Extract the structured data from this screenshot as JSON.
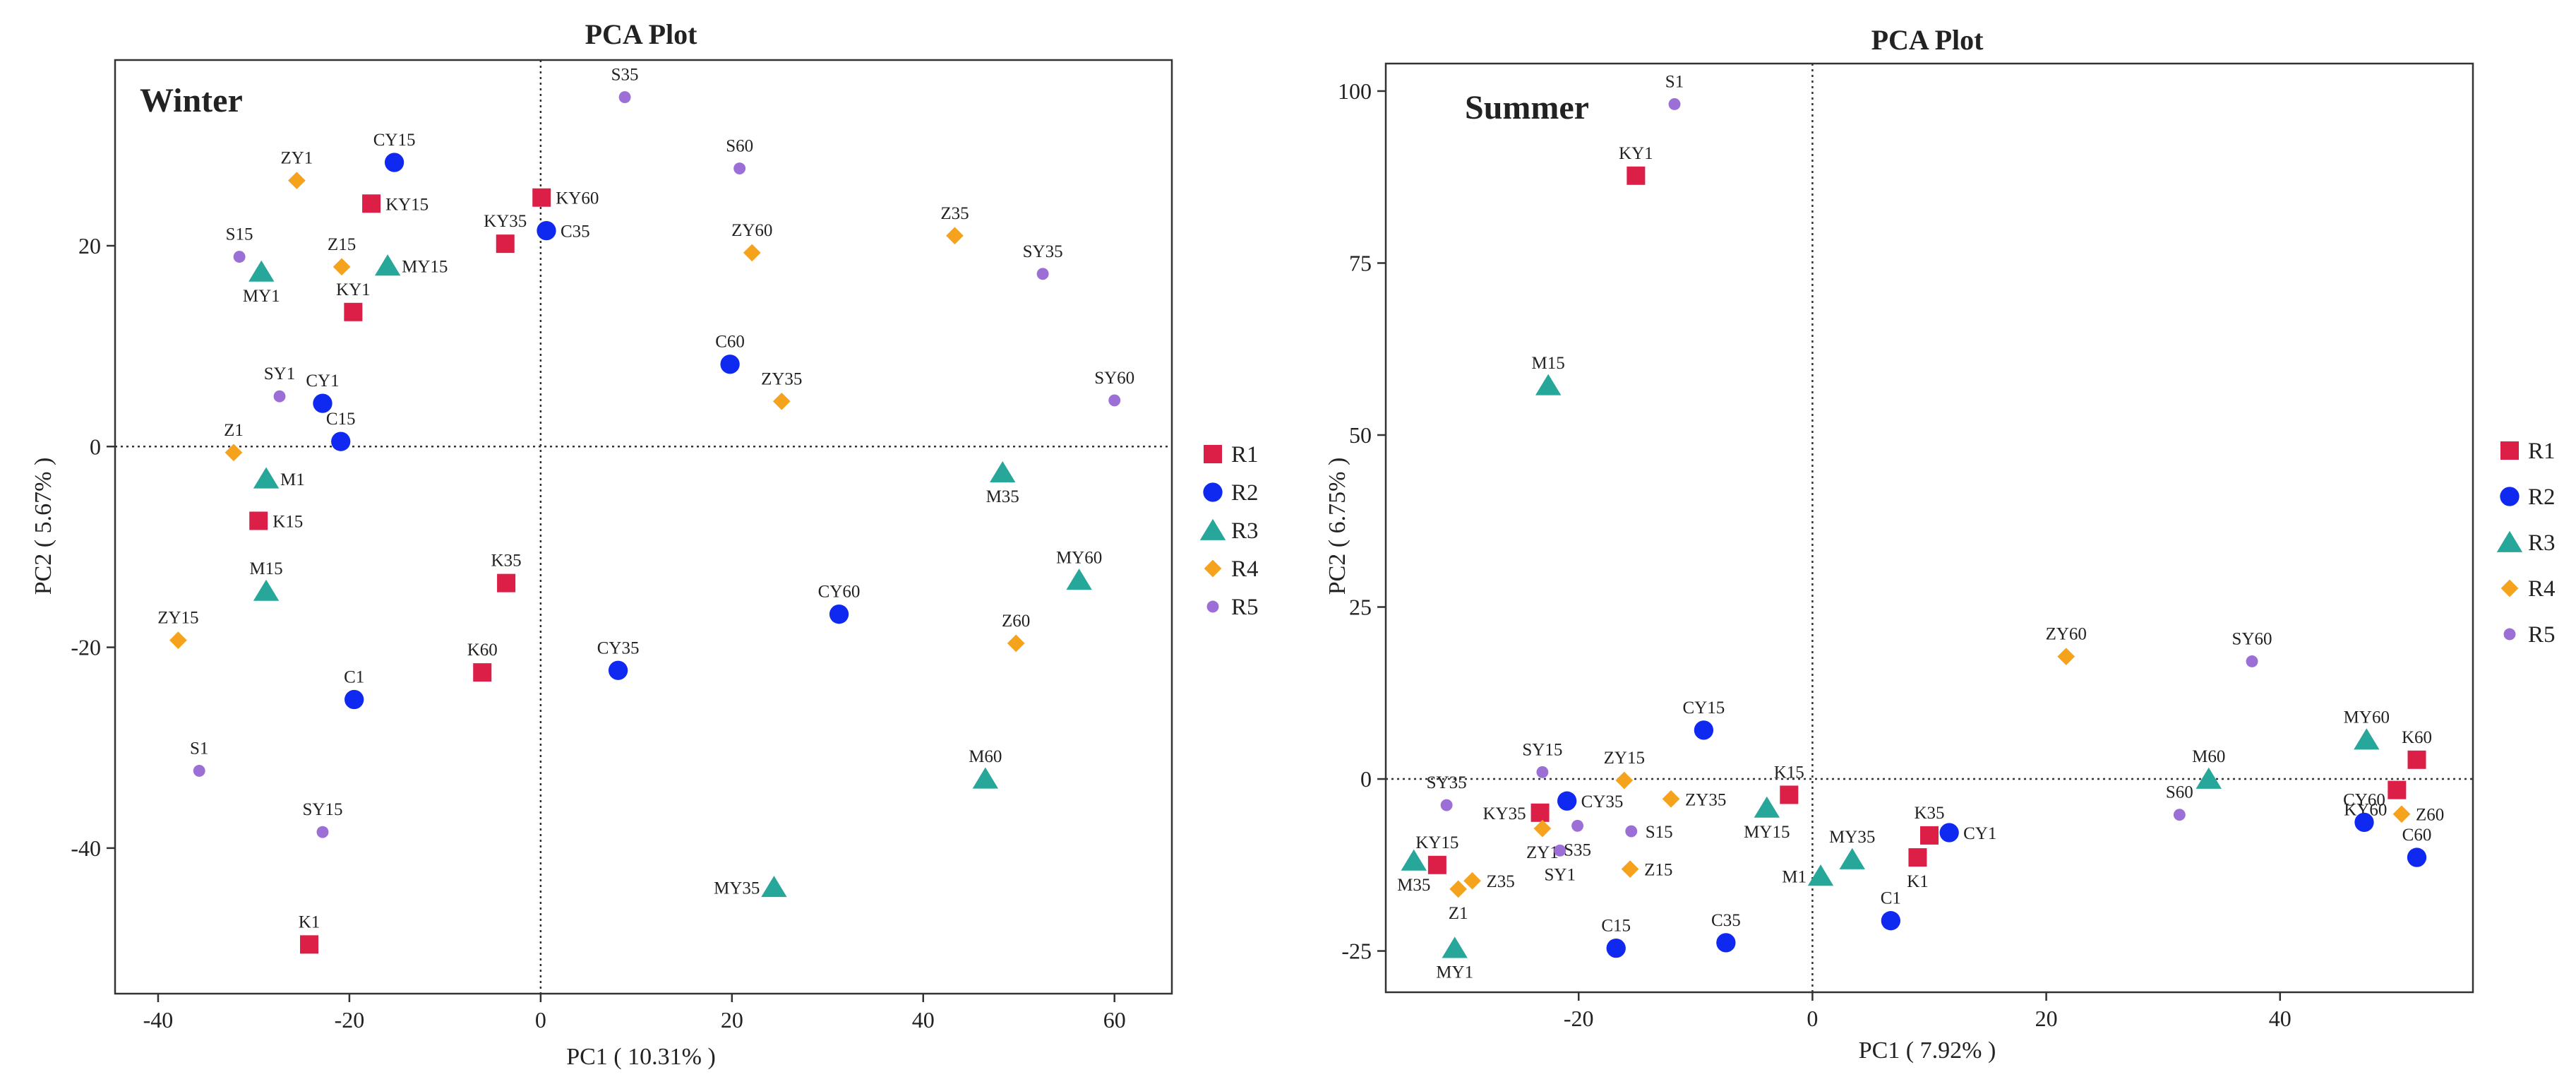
{
  "colors": {
    "R1": "#dc1f47",
    "R2": "#1029f0",
    "R3": "#27a79a",
    "R4": "#f5a31c",
    "R5": "#9c6fd6"
  },
  "chart_data": [
    {
      "type": "scatter",
      "title": "PCA Plot",
      "panel_label": "Winter",
      "xlabel": "PC1 ( 10.31% )",
      "ylabel": "PC2 ( 5.67% )",
      "xlim": [
        -44.5,
        66
      ],
      "ylim": [
        -54.5,
        38.5
      ],
      "xticks": [
        -40,
        -20,
        0,
        20,
        40,
        60
      ],
      "yticks": [
        -40,
        -20,
        0,
        20
      ],
      "legend": [
        {
          "name": "R1",
          "shape": "square"
        },
        {
          "name": "R2",
          "shape": "circle"
        },
        {
          "name": "R3",
          "shape": "triangle"
        },
        {
          "name": "R4",
          "shape": "diamond"
        },
        {
          "name": "R5",
          "shape": "dot"
        }
      ],
      "points": [
        {
          "label": "K1",
          "group": "R1",
          "x": -24.2,
          "y": -49.6,
          "pos": "above"
        },
        {
          "label": "K15",
          "group": "R1",
          "x": -29.5,
          "y": -7.4,
          "pos": "right"
        },
        {
          "label": "K35",
          "group": "R1",
          "x": -3.6,
          "y": -13.6,
          "pos": "above"
        },
        {
          "label": "K60",
          "group": "R1",
          "x": -6.1,
          "y": -22.5,
          "pos": "above"
        },
        {
          "label": "KY1",
          "group": "R1",
          "x": -19.6,
          "y": 13.4,
          "pos": "above"
        },
        {
          "label": "KY15",
          "group": "R1",
          "x": -17.7,
          "y": 24.2,
          "pos": "right"
        },
        {
          "label": "KY35",
          "group": "R1",
          "x": -3.7,
          "y": 20.2,
          "pos": "above"
        },
        {
          "label": "KY60",
          "group": "R1",
          "x": 0.1,
          "y": 24.8,
          "pos": "right"
        },
        {
          "label": "C1",
          "group": "R2",
          "x": -19.5,
          "y": -25.2,
          "pos": "above"
        },
        {
          "label": "C15",
          "group": "R2",
          "x": -20.9,
          "y": 0.5,
          "pos": "above"
        },
        {
          "label": "C35",
          "group": "R2",
          "x": 0.6,
          "y": 21.5,
          "pos": "right"
        },
        {
          "label": "C60",
          "group": "R2",
          "x": 19.8,
          "y": 8.2,
          "pos": "above"
        },
        {
          "label": "CY1",
          "group": "R2",
          "x": -22.8,
          "y": 4.3,
          "pos": "above"
        },
        {
          "label": "CY15",
          "group": "R2",
          "x": -15.3,
          "y": 28.3,
          "pos": "above"
        },
        {
          "label": "CY35",
          "group": "R2",
          "x": 8.1,
          "y": -22.3,
          "pos": "above"
        },
        {
          "label": "CY60",
          "group": "R2",
          "x": 31.2,
          "y": -16.7,
          "pos": "above"
        },
        {
          "label": "M1",
          "group": "R3",
          "x": -28.7,
          "y": -3.2,
          "pos": "right"
        },
        {
          "label": "M15",
          "group": "R3",
          "x": -28.7,
          "y": -14.4,
          "pos": "above"
        },
        {
          "label": "M35",
          "group": "R3",
          "x": 48.3,
          "y": -2.6,
          "pos": "below"
        },
        {
          "label": "M60",
          "group": "R3",
          "x": 46.5,
          "y": -33.1,
          "pos": "above"
        },
        {
          "label": "MY1",
          "group": "R3",
          "x": -29.2,
          "y": 17.4,
          "pos": "below"
        },
        {
          "label": "MY15",
          "group": "R3",
          "x": -16.0,
          "y": 18.0,
          "pos": "right"
        },
        {
          "label": "MY35",
          "group": "R3",
          "x": 24.4,
          "y": -43.9,
          "pos": "left"
        },
        {
          "label": "MY60",
          "group": "R3",
          "x": 56.3,
          "y": -13.3,
          "pos": "above"
        },
        {
          "label": "Z1",
          "group": "R4",
          "x": -32.1,
          "y": -0.6,
          "pos": "above"
        },
        {
          "label": "Z15",
          "group": "R4",
          "x": -20.8,
          "y": 17.9,
          "pos": "above"
        },
        {
          "label": "Z35",
          "group": "R4",
          "x": 43.3,
          "y": 21.0,
          "pos": "above"
        },
        {
          "label": "Z60",
          "group": "R4",
          "x": 49.7,
          "y": -19.6,
          "pos": "above"
        },
        {
          "label": "ZY1",
          "group": "R4",
          "x": -25.5,
          "y": 26.5,
          "pos": "above"
        },
        {
          "label": "ZY15",
          "group": "R4",
          "x": -37.9,
          "y": -19.3,
          "pos": "above"
        },
        {
          "label": "ZY35",
          "group": "R4",
          "x": 25.2,
          "y": 4.5,
          "pos": "above"
        },
        {
          "label": "ZY60",
          "group": "R4",
          "x": 22.1,
          "y": 19.3,
          "pos": "above"
        },
        {
          "label": "S1",
          "group": "R5",
          "x": -35.7,
          "y": -32.3,
          "pos": "above"
        },
        {
          "label": "S15",
          "group": "R5",
          "x": -31.5,
          "y": 18.9,
          "pos": "above"
        },
        {
          "label": "S35",
          "group": "R5",
          "x": 8.8,
          "y": 34.8,
          "pos": "above"
        },
        {
          "label": "S60",
          "group": "R5",
          "x": 20.8,
          "y": 27.7,
          "pos": "above"
        },
        {
          "label": "SY1",
          "group": "R5",
          "x": -27.3,
          "y": 5.0,
          "pos": "above"
        },
        {
          "label": "SY15",
          "group": "R5",
          "x": -22.8,
          "y": -38.4,
          "pos": "above"
        },
        {
          "label": "SY35",
          "group": "R5",
          "x": 52.5,
          "y": 17.2,
          "pos": "above"
        },
        {
          "label": "SY60",
          "group": "R5",
          "x": 60.0,
          "y": 4.6,
          "pos": "above"
        }
      ]
    },
    {
      "type": "scatter",
      "title": "PCA Plot",
      "panel_label": "Summer",
      "xlabel": "PC1 ( 7.92% )",
      "ylabel": "PC2 ( 6.75% )",
      "xlim": [
        -36.5,
        56.5
      ],
      "ylim": [
        -31,
        104
      ],
      "xticks": [
        -20,
        0,
        20,
        40
      ],
      "yticks": [
        -25,
        0,
        25,
        50,
        75,
        100
      ],
      "legend": [
        {
          "name": "R1",
          "shape": "square"
        },
        {
          "name": "R2",
          "shape": "circle"
        },
        {
          "name": "R3",
          "shape": "triangle"
        },
        {
          "name": "R4",
          "shape": "diamond"
        },
        {
          "name": "R5",
          "shape": "dot"
        }
      ],
      "points": [
        {
          "label": "K1",
          "group": "R1",
          "x": 9.0,
          "y": -11.4,
          "pos": "below"
        },
        {
          "label": "K15",
          "group": "R1",
          "x": -2.0,
          "y": -2.3,
          "pos": "above"
        },
        {
          "label": "K35",
          "group": "R1",
          "x": 10.0,
          "y": -8.2,
          "pos": "above"
        },
        {
          "label": "K60",
          "group": "R1",
          "x": 51.7,
          "y": 2.8,
          "pos": "above"
        },
        {
          "label": "KY1",
          "group": "R1",
          "x": -15.1,
          "y": 87.7,
          "pos": "above"
        },
        {
          "label": "KY15",
          "group": "R1",
          "x": -32.1,
          "y": -12.5,
          "pos": "above"
        },
        {
          "label": "KY35",
          "group": "R1",
          "x": -23.3,
          "y": -4.9,
          "pos": "left"
        },
        {
          "label": "KY60",
          "group": "R1",
          "x": 50.0,
          "y": -1.6,
          "pos": "belowleft"
        },
        {
          "label": "C1",
          "group": "R2",
          "x": 6.7,
          "y": -20.6,
          "pos": "above"
        },
        {
          "label": "C15",
          "group": "R2",
          "x": -16.8,
          "y": -24.6,
          "pos": "above"
        },
        {
          "label": "C35",
          "group": "R2",
          "x": -7.4,
          "y": -23.8,
          "pos": "above"
        },
        {
          "label": "C60",
          "group": "R2",
          "x": 51.7,
          "y": -11.4,
          "pos": "above"
        },
        {
          "label": "CY1",
          "group": "R2",
          "x": 11.7,
          "y": -7.8,
          "pos": "right"
        },
        {
          "label": "CY15",
          "group": "R2",
          "x": -9.3,
          "y": 7.1,
          "pos": "above"
        },
        {
          "label": "CY35",
          "group": "R2",
          "x": -21.0,
          "y": -3.2,
          "pos": "right"
        },
        {
          "label": "CY60",
          "group": "R2",
          "x": 47.2,
          "y": -6.3,
          "pos": "above"
        },
        {
          "label": "M1",
          "group": "R3",
          "x": 0.7,
          "y": -14.1,
          "pos": "left"
        },
        {
          "label": "M15",
          "group": "R3",
          "x": -22.6,
          "y": 57.2,
          "pos": "above"
        },
        {
          "label": "M35",
          "group": "R3",
          "x": -34.1,
          "y": -11.9,
          "pos": "below"
        },
        {
          "label": "M60",
          "group": "R3",
          "x": 33.9,
          "y": 0.0,
          "pos": "above"
        },
        {
          "label": "MY1",
          "group": "R3",
          "x": -30.6,
          "y": -24.6,
          "pos": "below"
        },
        {
          "label": "MY15",
          "group": "R3",
          "x": -3.9,
          "y": -4.2,
          "pos": "below"
        },
        {
          "label": "MY35",
          "group": "R3",
          "x": 3.4,
          "y": -11.7,
          "pos": "above"
        },
        {
          "label": "MY60",
          "group": "R3",
          "x": 47.4,
          "y": 5.7,
          "pos": "above"
        },
        {
          "label": "Z1",
          "group": "R4",
          "x": -30.3,
          "y": -16.0,
          "pos": "below"
        },
        {
          "label": "Z15",
          "group": "R4",
          "x": -15.6,
          "y": -13.1,
          "pos": "right"
        },
        {
          "label": "Z35",
          "group": "R4",
          "x": -29.1,
          "y": -14.8,
          "pos": "right"
        },
        {
          "label": "Z60",
          "group": "R4",
          "x": 50.4,
          "y": -5.1,
          "pos": "right"
        },
        {
          "label": "ZY1",
          "group": "R4",
          "x": -23.1,
          "y": -7.2,
          "pos": "below"
        },
        {
          "label": "ZY15",
          "group": "R4",
          "x": -16.1,
          "y": -0.2,
          "pos": "above"
        },
        {
          "label": "ZY35",
          "group": "R4",
          "x": -12.1,
          "y": -2.9,
          "pos": "right"
        },
        {
          "label": "ZY60",
          "group": "R4",
          "x": 21.7,
          "y": 17.8,
          "pos": "above"
        },
        {
          "label": "S1",
          "group": "R5",
          "x": -11.8,
          "y": 98.1,
          "pos": "above"
        },
        {
          "label": "S15",
          "group": "R5",
          "x": -15.5,
          "y": -7.6,
          "pos": "right"
        },
        {
          "label": "S35",
          "group": "R5",
          "x": -20.1,
          "y": -6.8,
          "pos": "below"
        },
        {
          "label": "S60",
          "group": "R5",
          "x": 31.4,
          "y": -5.2,
          "pos": "above"
        },
        {
          "label": "SY1",
          "group": "R5",
          "x": -21.6,
          "y": -10.4,
          "pos": "below"
        },
        {
          "label": "SY15",
          "group": "R5",
          "x": -23.1,
          "y": 1.0,
          "pos": "above"
        },
        {
          "label": "SY35",
          "group": "R5",
          "x": -31.3,
          "y": -3.8,
          "pos": "above"
        },
        {
          "label": "SY60",
          "group": "R5",
          "x": 37.6,
          "y": 17.1,
          "pos": "above"
        }
      ]
    }
  ]
}
